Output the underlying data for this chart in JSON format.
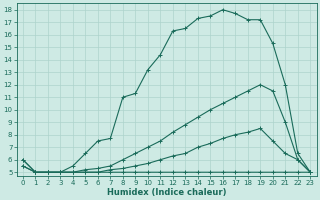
{
  "xlabel": "Humidex (Indice chaleur)",
  "bg_color": "#ceeae4",
  "line_color": "#1a6b5a",
  "grid_color": "#aed4cc",
  "xlim": [
    -0.5,
    23.5
  ],
  "ylim": [
    4.7,
    18.5
  ],
  "xticks": [
    0,
    1,
    2,
    3,
    4,
    5,
    6,
    7,
    8,
    9,
    10,
    11,
    12,
    13,
    14,
    15,
    16,
    17,
    18,
    19,
    20,
    21,
    22,
    23
  ],
  "yticks": [
    5,
    6,
    7,
    8,
    9,
    10,
    11,
    12,
    13,
    14,
    15,
    16,
    17,
    18
  ],
  "line1_x": [
    0,
    1,
    2,
    3,
    4,
    5,
    6,
    7,
    8,
    9,
    10,
    11,
    12,
    13,
    14,
    15,
    16,
    17,
    18,
    19,
    20,
    21,
    22,
    23
  ],
  "line1_y": [
    6.0,
    5.0,
    5.0,
    5.0,
    5.5,
    6.5,
    7.5,
    7.7,
    11.0,
    11.3,
    13.2,
    14.4,
    16.3,
    16.5,
    17.3,
    17.5,
    18.0,
    17.7,
    17.2,
    17.2,
    15.3,
    12.0,
    6.5,
    5.0
  ],
  "line2_x": [
    0,
    1,
    2,
    3,
    4,
    5,
    6,
    7,
    8,
    9,
    10,
    11,
    12,
    13,
    14,
    15,
    16,
    17,
    18,
    19,
    20,
    21,
    22,
    23
  ],
  "line2_y": [
    6.0,
    5.0,
    5.0,
    5.0,
    5.0,
    5.2,
    5.3,
    5.5,
    6.0,
    6.5,
    7.0,
    7.5,
    8.2,
    8.8,
    9.4,
    10.0,
    10.5,
    11.0,
    11.5,
    12.0,
    11.5,
    9.0,
    6.0,
    5.0
  ],
  "line3_x": [
    0,
    1,
    2,
    3,
    4,
    5,
    6,
    7,
    8,
    9,
    10,
    11,
    12,
    13,
    14,
    15,
    16,
    17,
    18,
    19,
    20,
    21,
    22,
    23
  ],
  "line3_y": [
    5.5,
    5.0,
    5.0,
    5.0,
    5.0,
    5.0,
    5.0,
    5.2,
    5.3,
    5.5,
    5.7,
    6.0,
    6.3,
    6.5,
    7.0,
    7.3,
    7.7,
    8.0,
    8.2,
    8.5,
    7.5,
    6.5,
    6.0,
    5.0
  ],
  "line4_x": [
    0,
    1,
    2,
    3,
    4,
    5,
    6,
    7,
    8,
    9,
    10,
    11,
    12,
    13,
    14,
    15,
    16,
    17,
    18,
    19,
    20,
    21,
    22,
    23
  ],
  "line4_y": [
    5.5,
    5.0,
    5.0,
    5.0,
    5.0,
    5.0,
    5.0,
    5.0,
    5.0,
    5.0,
    5.0,
    5.0,
    5.0,
    5.0,
    5.0,
    5.0,
    5.0,
    5.0,
    5.0,
    5.0,
    5.0,
    5.0,
    5.0,
    5.0
  ],
  "marker": "+",
  "markersize": 3,
  "linewidth": 0.8,
  "tick_fontsize": 5,
  "xlabel_fontsize": 6
}
